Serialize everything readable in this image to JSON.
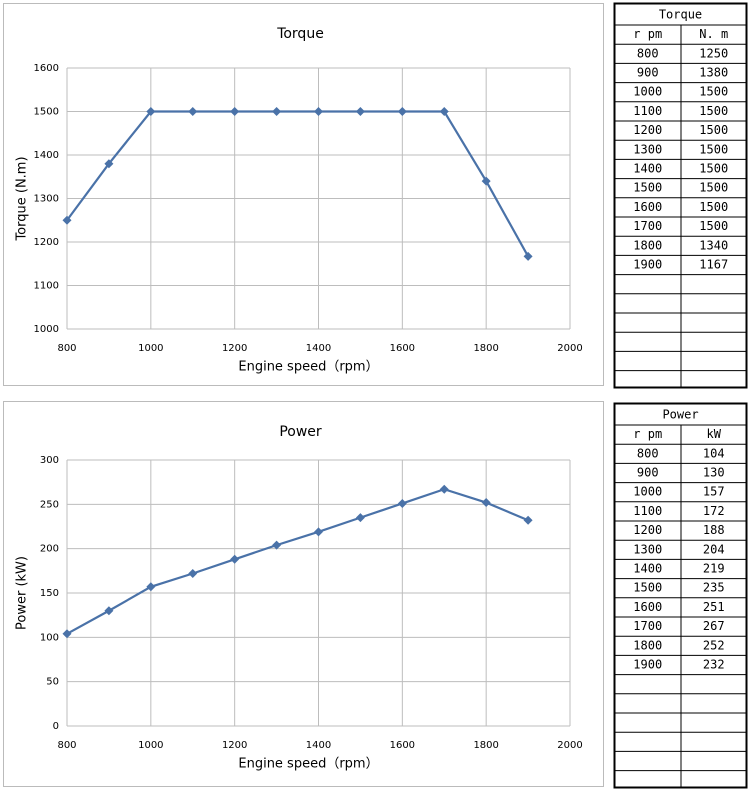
{
  "chart_data": [
    {
      "type": "line",
      "title": "Torque",
      "x_label": "Engine speed（rpm）",
      "y_label": "Torque (N.m)",
      "x": [
        800,
        900,
        1000,
        1100,
        1200,
        1300,
        1400,
        1500,
        1600,
        1700,
        1800,
        1900
      ],
      "series": [
        {
          "color": "#4a72a8",
          "values": [
            1250,
            1380,
            1500,
            1500,
            1500,
            1500,
            1500,
            1500,
            1500,
            1500,
            1340,
            1167
          ]
        }
      ],
      "xlim": [
        800,
        2000
      ],
      "xticks": [
        800,
        1000,
        1200,
        1400,
        1600,
        1800,
        2000
      ],
      "ylim": [
        1000,
        1600
      ],
      "yticks": [
        1000,
        1100,
        1200,
        1300,
        1400,
        1500,
        1600
      ],
      "grid": true,
      "marker": "diamond"
    },
    {
      "type": "line",
      "title": "Power",
      "x_label": "Engine speed（rpm）",
      "y_label": "Power (kW)",
      "x": [
        800,
        900,
        1000,
        1100,
        1200,
        1300,
        1400,
        1500,
        1600,
        1700,
        1800,
        1900
      ],
      "series": [
        {
          "color": "#4a72a8",
          "values": [
            104,
            130,
            157,
            172,
            188,
            204,
            219,
            235,
            251,
            267,
            252,
            232
          ]
        }
      ],
      "xlim": [
        800,
        2000
      ],
      "xticks": [
        800,
        1000,
        1200,
        1400,
        1600,
        1800,
        2000
      ],
      "ylim": [
        0,
        300
      ],
      "yticks": [
        0,
        50,
        100,
        150,
        200,
        250,
        300
      ],
      "grid": true,
      "marker": "diamond"
    }
  ],
  "tables": [
    {
      "title": "Torque",
      "columns": [
        "r pm",
        "N. m"
      ]
    },
    {
      "title": "Power",
      "columns": [
        "r pm",
        "kW"
      ]
    }
  ]
}
